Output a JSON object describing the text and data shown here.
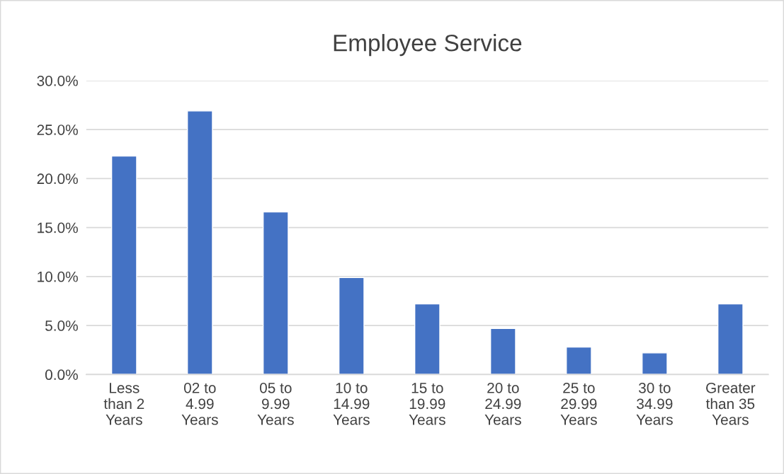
{
  "chart_data": {
    "type": "bar",
    "title": "Employee Service",
    "categories": [
      "Less\nthan 2\nYears",
      "02 to\n4.99\nYears",
      "05 to\n9.99\nYears",
      "10 to\n14.99\nYears",
      "15 to\n19.99\nYears",
      "20 to\n24.99\nYears",
      "25 to\n29.99\nYears",
      "30 to\n34.99\nYears",
      "Greater\nthan 35\nYears"
    ],
    "values": [
      22.3,
      26.9,
      16.6,
      9.9,
      7.2,
      4.7,
      2.8,
      2.2,
      7.2
    ],
    "color": "#4472c4",
    "ylim": [
      0,
      30
    ],
    "yticks": [
      {
        "value": 0,
        "label": "0.0%"
      },
      {
        "value": 5,
        "label": "5.0%"
      },
      {
        "value": 10,
        "label": "10.0%"
      },
      {
        "value": 15,
        "label": "15.0%"
      },
      {
        "value": 20,
        "label": "20.0%"
      },
      {
        "value": 25,
        "label": "25.0%"
      },
      {
        "value": 30,
        "label": "30.0%"
      }
    ],
    "grid": "y",
    "legend": false
  }
}
